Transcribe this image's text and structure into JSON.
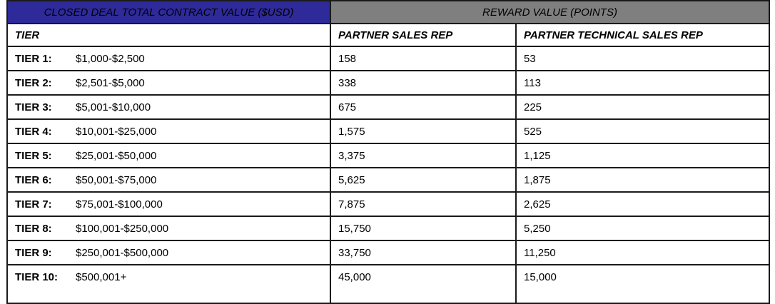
{
  "banner": {
    "left": "CLOSED DEAL TOTAL CONTRACT VALUE ($USD)",
    "right": "REWARD VALUE (POINTS)"
  },
  "columns": {
    "tier": "TIER",
    "sales_rep": "PARTNER SALES REP",
    "tech_rep": "PARTNER TECHNICAL SALES REP"
  },
  "rows": [
    {
      "tier": "TIER 1:",
      "range": "$1,000-$2,500",
      "sales": "158",
      "tech": "53"
    },
    {
      "tier": "TIER 2:",
      "range": "$2,501-$5,000",
      "sales": "338",
      "tech": "113"
    },
    {
      "tier": "TIER 3:",
      "range": "$5,001-$10,000",
      "sales": "675",
      "tech": "225"
    },
    {
      "tier": "TIER 4:",
      "range": "$10,001-$25,000",
      "sales": "1,575",
      "tech": "525"
    },
    {
      "tier": "TIER 5:",
      "range": "$25,001-$50,000",
      "sales": "3,375",
      "tech": "1,125"
    },
    {
      "tier": "TIER 6:",
      "range": "$50,001-$75,000",
      "sales": "5,625",
      "tech": "1,875"
    },
    {
      "tier": "TIER 7:",
      "range": "$75,001-$100,000",
      "sales": "7,875",
      "tech": "2,625"
    },
    {
      "tier": "TIER 8:",
      "range": "$100,001-$250,000",
      "sales": "15,750",
      "tech": "5,250"
    },
    {
      "tier": "TIER 9:",
      "range": "$250,001-$500,000",
      "sales": "33,750",
      "tech": "11,250"
    },
    {
      "tier": "TIER 10:",
      "range": "$500,001+",
      "sales": "45,000",
      "tech": "15,000"
    }
  ],
  "colors": {
    "banner_left_bg": "#2e2a9a",
    "banner_right_bg": "#7f7f7f",
    "banner_text": "#ffffff"
  }
}
